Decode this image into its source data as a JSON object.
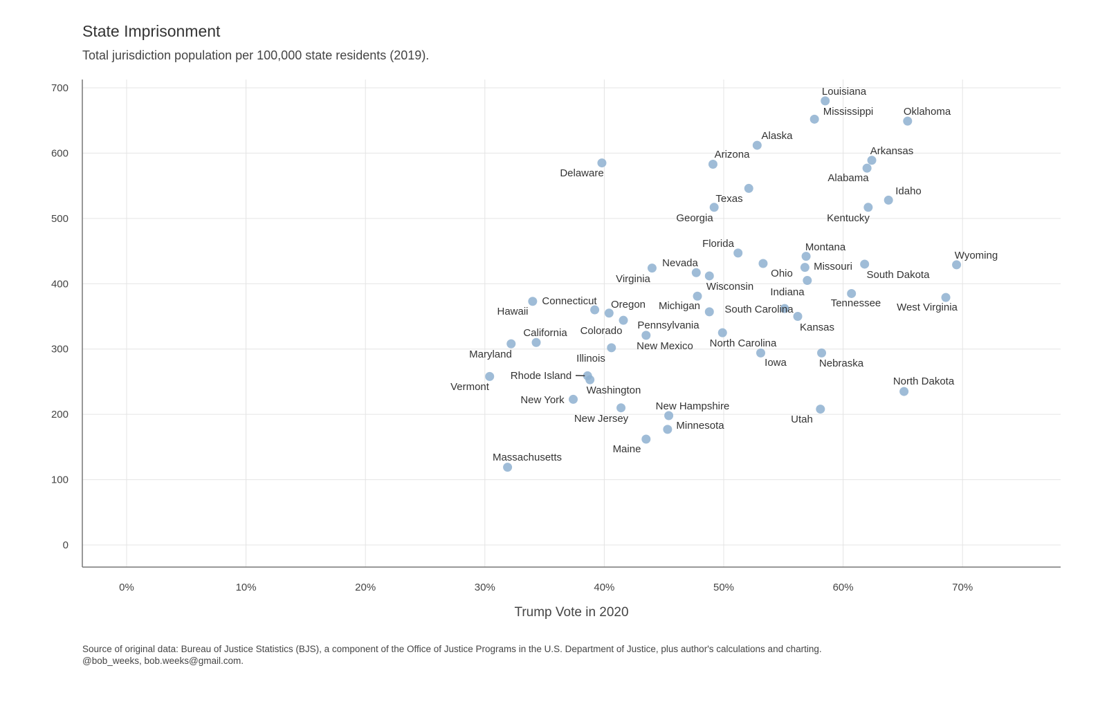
{
  "chart_data": {
    "type": "scatter",
    "title": "State Imprisonment",
    "subtitle": "Total jurisdiction population per 100,000 state residents (2019).",
    "xlabel": "Trump Vote in 2020",
    "ylabel": "",
    "xlim": [
      0,
      78
    ],
    "ylim": [
      0,
      700
    ],
    "x_ticks": [
      0,
      10,
      20,
      30,
      40,
      50,
      60,
      70
    ],
    "x_tick_labels": [
      "0%",
      "10%",
      "20%",
      "30%",
      "40%",
      "50%",
      "60%",
      "70%"
    ],
    "y_ticks": [
      0,
      100,
      200,
      300,
      400,
      500,
      600,
      700
    ],
    "y_tick_labels": [
      "0",
      "100",
      "200",
      "300",
      "400",
      "500",
      "600",
      "700"
    ],
    "grid": true,
    "point_color": "#8eb0d0",
    "points": [
      {
        "label": "Louisiana",
        "x": 58.5,
        "y": 680
      },
      {
        "label": "Mississippi",
        "x": 57.6,
        "y": 652
      },
      {
        "label": "Oklahoma",
        "x": 65.4,
        "y": 649
      },
      {
        "label": "Alaska",
        "x": 52.8,
        "y": 612
      },
      {
        "label": "Arkansas",
        "x": 62.4,
        "y": 589
      },
      {
        "label": "Alabama",
        "x": 62.0,
        "y": 577
      },
      {
        "label": "Arizona",
        "x": 49.1,
        "y": 583
      },
      {
        "label": "Delaware",
        "x": 39.8,
        "y": 585
      },
      {
        "label": "Texas",
        "x": 52.1,
        "y": 546
      },
      {
        "label": "Georgia",
        "x": 49.2,
        "y": 517
      },
      {
        "label": "Idaho",
        "x": 63.8,
        "y": 528
      },
      {
        "label": "Kentucky",
        "x": 62.1,
        "y": 517
      },
      {
        "label": "Florida",
        "x": 51.2,
        "y": 447
      },
      {
        "label": "Montana",
        "x": 56.9,
        "y": 442
      },
      {
        "label": "Ohio",
        "x": 53.3,
        "y": 431
      },
      {
        "label": "Missouri",
        "x": 56.8,
        "y": 425
      },
      {
        "label": "South Dakota",
        "x": 61.8,
        "y": 430
      },
      {
        "label": "Wyoming",
        "x": 69.5,
        "y": 429
      },
      {
        "label": "Virginia",
        "x": 44.0,
        "y": 424
      },
      {
        "label": "Nevada",
        "x": 47.7,
        "y": 417
      },
      {
        "label": "Wisconsin",
        "x": 48.8,
        "y": 412
      },
      {
        "label": "Indiana",
        "x": 57.0,
        "y": 405
      },
      {
        "label": "Michigan",
        "x": 47.8,
        "y": 381
      },
      {
        "label": "Tennessee",
        "x": 60.7,
        "y": 385
      },
      {
        "label": "West Virginia",
        "x": 68.6,
        "y": 379
      },
      {
        "label": "Hawaii",
        "x": 34.0,
        "y": 373
      },
      {
        "label": "Connecticut",
        "x": 39.2,
        "y": 360
      },
      {
        "label": "Oregon",
        "x": 40.4,
        "y": 355
      },
      {
        "label": "Colorado",
        "x": 41.6,
        "y": 344
      },
      {
        "label": "South Carolina",
        "x": 55.1,
        "y": 362
      },
      {
        "label": "Pennsylvania",
        "x": 48.8,
        "y": 357
      },
      {
        "label": "New Mexico",
        "x": 43.5,
        "y": 321
      },
      {
        "label": "Kansas",
        "x": 56.2,
        "y": 350
      },
      {
        "label": "North Carolina",
        "x": 49.9,
        "y": 325
      },
      {
        "label": "California",
        "x": 34.3,
        "y": 310
      },
      {
        "label": "Maryland",
        "x": 32.2,
        "y": 308
      },
      {
        "label": "Illinois",
        "x": 40.6,
        "y": 302
      },
      {
        "label": "Iowa",
        "x": 53.1,
        "y": 294
      },
      {
        "label": "Nebraska",
        "x": 58.2,
        "y": 294
      },
      {
        "label": "Rhode Island",
        "x": 38.6,
        "y": 259
      },
      {
        "label": "Washington",
        "x": 38.8,
        "y": 253
      },
      {
        "label": "Vermont",
        "x": 30.4,
        "y": 258
      },
      {
        "label": "New York",
        "x": 37.4,
        "y": 223
      },
      {
        "label": "North Dakota",
        "x": 65.1,
        "y": 235
      },
      {
        "label": "New Jersey",
        "x": 41.4,
        "y": 210
      },
      {
        "label": "Utah",
        "x": 58.1,
        "y": 208
      },
      {
        "label": "New Hampshire",
        "x": 45.4,
        "y": 198
      },
      {
        "label": "Minnesota",
        "x": 45.3,
        "y": 177
      },
      {
        "label": "Maine",
        "x": 43.5,
        "y": 162
      },
      {
        "label": "Massachusetts",
        "x": 31.9,
        "y": 119
      }
    ],
    "caption": [
      "Source of original data: Bureau of Justice Statistics (BJS), a component of the Office of Justice Programs in the U.S. Department of Justice, plus author's calculations and charting.",
      "@bob_weeks, bob.weeks@gmail.com."
    ]
  }
}
